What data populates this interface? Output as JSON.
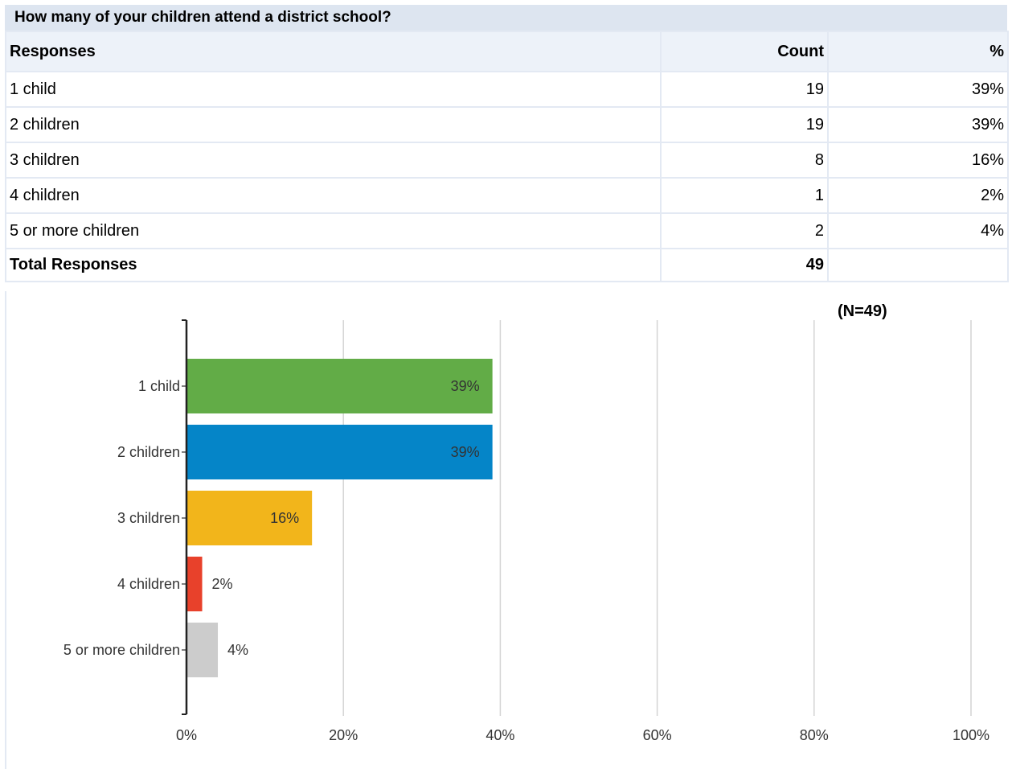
{
  "question": "How many of your children attend a district school?",
  "table": {
    "headers": [
      "Responses",
      "Count",
      "%"
    ],
    "rows": [
      {
        "response": "1 child",
        "count": "19",
        "percent": "39%"
      },
      {
        "response": "2 children",
        "count": "19",
        "percent": "39%"
      },
      {
        "response": "3 children",
        "count": "8",
        "percent": "16%"
      },
      {
        "response": "4 children",
        "count": "1",
        "percent": "2%"
      },
      {
        "response": "5 or more children",
        "count": "2",
        "percent": "4%"
      }
    ],
    "total_label": "Total Responses",
    "total_count": "49"
  },
  "chart_data": {
    "type": "bar",
    "orientation": "horizontal",
    "categories": [
      "1 child",
      "2 children",
      "3 children",
      "4 children",
      "5 or more children"
    ],
    "values": [
      39,
      39,
      16,
      2,
      4
    ],
    "value_labels": [
      "39%",
      "39%",
      "16%",
      "2%",
      "4%"
    ],
    "colors": [
      "#62ac47",
      "#0585c8",
      "#f2b51b",
      "#e8412b",
      "#cccccc"
    ],
    "xlim": [
      0,
      100
    ],
    "xticks": [
      0,
      20,
      40,
      60,
      80,
      100
    ],
    "xtick_labels": [
      "0%",
      "20%",
      "40%",
      "60%",
      "80%",
      "100%"
    ],
    "annotation": "(N=49)",
    "grid": true,
    "title": "",
    "xlabel": "",
    "ylabel": ""
  }
}
